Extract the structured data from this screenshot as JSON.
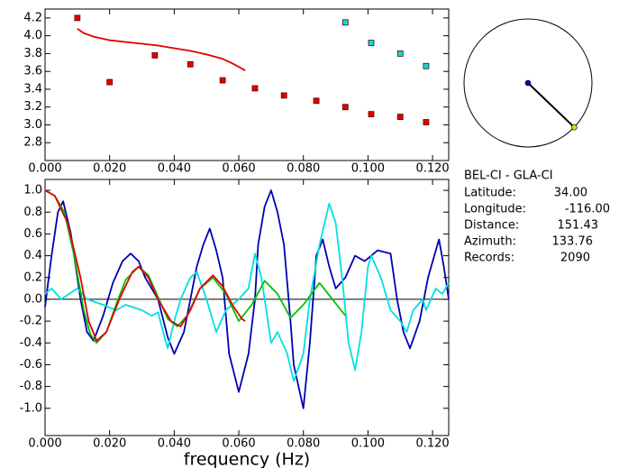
{
  "chart_data": [
    {
      "type": "scatter",
      "xlim": [
        0,
        0.125
      ],
      "xticks": [
        {
          "value": 0,
          "label": "0.000"
        },
        {
          "value": 0.02,
          "label": "0.020"
        },
        {
          "value": 0.04,
          "label": "0.040"
        },
        {
          "value": 0.06,
          "label": "0.060"
        },
        {
          "value": 0.08,
          "label": "0.080"
        },
        {
          "value": 0.1,
          "label": "0.100"
        },
        {
          "value": 0.12,
          "label": "0.120"
        }
      ],
      "ylim": [
        2.6,
        4.3
      ],
      "yticks": [
        {
          "value": 2.8,
          "label": "2.8"
        },
        {
          "value": 3.0,
          "label": "3.0"
        },
        {
          "value": 3.2,
          "label": "3.2"
        },
        {
          "value": 3.4,
          "label": "3.4"
        },
        {
          "value": 3.6,
          "label": "3.6"
        },
        {
          "value": 3.8,
          "label": "3.8"
        },
        {
          "value": 4.0,
          "label": "4.0"
        },
        {
          "value": 4.2,
          "label": "4.2"
        }
      ],
      "series": [
        {
          "type": "scatter",
          "color": "#e00000",
          "x": [
            0.01,
            0.02,
            0.034,
            0.045,
            0.055,
            0.065,
            0.074,
            0.084,
            0.093,
            0.101,
            0.11,
            0.118
          ],
          "values": [
            4.2,
            3.48,
            3.78,
            3.68,
            3.5,
            3.41,
            3.33,
            3.27,
            3.2,
            3.12,
            3.09,
            3.03
          ]
        },
        {
          "type": "scatter",
          "color": "#00e0e0",
          "x": [
            0.093,
            0.101,
            0.11,
            0.118
          ],
          "values": [
            4.15,
            3.92,
            3.8,
            3.66
          ]
        },
        {
          "type": "line",
          "color": "#e00000",
          "x": [
            0.01,
            0.012,
            0.015,
            0.02,
            0.025,
            0.03,
            0.035,
            0.04,
            0.045,
            0.05,
            0.055,
            0.058,
            0.06,
            0.062
          ],
          "values": [
            4.08,
            4.03,
            3.99,
            3.95,
            3.93,
            3.91,
            3.89,
            3.86,
            3.83,
            3.79,
            3.74,
            3.69,
            3.65,
            3.61
          ]
        }
      ]
    },
    {
      "type": "line",
      "xlabel": "frequency (Hz)",
      "zero_line": true,
      "xlim": [
        0,
        0.125
      ],
      "xticks": [
        {
          "value": 0,
          "label": "0.000"
        },
        {
          "value": 0.02,
          "label": "0.020"
        },
        {
          "value": 0.04,
          "label": "0.040"
        },
        {
          "value": 0.06,
          "label": "0.060"
        },
        {
          "value": 0.08,
          "label": "0.080"
        },
        {
          "value": 0.1,
          "label": "0.100"
        },
        {
          "value": 0.12,
          "label": "0.120"
        }
      ],
      "ylim": [
        -1.25,
        1.1
      ],
      "yticks": [
        {
          "value": -1.0,
          "label": "-1.0"
        },
        {
          "value": -0.8,
          "label": "-0.8"
        },
        {
          "value": -0.6,
          "label": "-0.6"
        },
        {
          "value": -0.4,
          "label": "-0.4"
        },
        {
          "value": -0.2,
          "label": "-0.2"
        },
        {
          "value": 0,
          "label": "0.0"
        },
        {
          "value": 0.2,
          "label": "0.2"
        },
        {
          "value": 0.4,
          "label": "0.4"
        },
        {
          "value": 0.6,
          "label": "0.6"
        },
        {
          "value": 0.8,
          "label": "0.8"
        },
        {
          "value": 1.0,
          "label": "1.0"
        }
      ],
      "series": [
        {
          "color": "#0000b0",
          "x": [
            0,
            0.002,
            0.004,
            0.0056,
            0.008,
            0.011,
            0.013,
            0.015,
            0.018,
            0.021,
            0.024,
            0.0265,
            0.029,
            0.031,
            0.033,
            0.035,
            0.038,
            0.04,
            0.043,
            0.045,
            0.047,
            0.049,
            0.051,
            0.053,
            0.055,
            0.057,
            0.06,
            0.063,
            0.065,
            0.066,
            0.068,
            0.07,
            0.072,
            0.074,
            0.076,
            0.077,
            0.08,
            0.082,
            0.084,
            0.086,
            0.088,
            0.09,
            0.093,
            0.096,
            0.099,
            0.103,
            0.107,
            0.109,
            0.111,
            0.113,
            0.116,
            0.1186,
            0.122,
            0.1235,
            0.125
          ],
          "values": [
            -0.07,
            0.4,
            0.8,
            0.9,
            0.6,
            0.0,
            -0.3,
            -0.38,
            -0.15,
            0.15,
            0.35,
            0.42,
            0.35,
            0.2,
            0.1,
            0.0,
            -0.35,
            -0.5,
            -0.3,
            0.0,
            0.3,
            0.5,
            0.65,
            0.45,
            0.2,
            -0.5,
            -0.85,
            -0.5,
            0.0,
            0.5,
            0.85,
            1.0,
            0.8,
            0.5,
            -0.2,
            -0.6,
            -1.0,
            -0.4,
            0.4,
            0.55,
            0.3,
            0.1,
            0.2,
            0.4,
            0.35,
            0.45,
            0.42,
            0.0,
            -0.3,
            -0.45,
            -0.2,
            0.2,
            0.55,
            0.3,
            0.0
          ]
        },
        {
          "color": "#00e0e0",
          "x": [
            0,
            0.002,
            0.005,
            0.01,
            0.013,
            0.018,
            0.022,
            0.025,
            0.03,
            0.033,
            0.035,
            0.037,
            0.038,
            0.04,
            0.042,
            0.045,
            0.047,
            0.05,
            0.053,
            0.056,
            0.06,
            0.063,
            0.065,
            0.067,
            0.069,
            0.07,
            0.072,
            0.075,
            0.077,
            0.08,
            0.082,
            0.085,
            0.088,
            0.09,
            0.092,
            0.094,
            0.096,
            0.098,
            0.1,
            0.101,
            0.104,
            0.107,
            0.11,
            0.112,
            0.114,
            0.117,
            0.118,
            0.121,
            0.123,
            0.125
          ],
          "values": [
            0.05,
            0.1,
            0.0,
            0.1,
            0.0,
            -0.05,
            -0.1,
            -0.05,
            -0.1,
            -0.15,
            -0.12,
            -0.35,
            -0.45,
            -0.2,
            0.0,
            0.2,
            0.25,
            0.0,
            -0.3,
            -0.1,
            0.0,
            0.1,
            0.42,
            0.2,
            -0.2,
            -0.4,
            -0.3,
            -0.5,
            -0.75,
            -0.5,
            0.0,
            0.5,
            0.88,
            0.7,
            0.2,
            -0.4,
            -0.65,
            -0.3,
            0.3,
            0.4,
            0.2,
            -0.1,
            -0.2,
            -0.3,
            -0.1,
            0.0,
            -0.1,
            0.1,
            0.05,
            0.15
          ]
        },
        {
          "color": "#00c000",
          "x": [
            0,
            0.003,
            0.006,
            0.009,
            0.012,
            0.014,
            0.016,
            0.019,
            0.022,
            0.025,
            0.029,
            0.032,
            0.035,
            0.038,
            0.041,
            0.044,
            0.048,
            0.052,
            0.056,
            0.06,
            0.064,
            0.068,
            0.072,
            0.076,
            0.08,
            0.085,
            0.089,
            0.093
          ],
          "values": [
            1.0,
            0.95,
            0.8,
            0.4,
            -0.1,
            -0.32,
            -0.4,
            -0.3,
            -0.05,
            0.18,
            0.3,
            0.22,
            0.02,
            -0.18,
            -0.25,
            -0.15,
            0.1,
            0.2,
            0.05,
            -0.2,
            -0.05,
            0.17,
            0.05,
            -0.17,
            -0.05,
            0.15,
            0.0,
            -0.15
          ]
        },
        {
          "color": "#e00000",
          "x": [
            0,
            0.003,
            0.007,
            0.011,
            0.0135,
            0.016,
            0.019,
            0.023,
            0.027,
            0.029,
            0.032,
            0.035,
            0.039,
            0.042,
            0.045,
            0.048,
            0.052,
            0.055,
            0.058,
            0.061,
            0.062
          ],
          "values": [
            1.0,
            0.95,
            0.7,
            0.2,
            -0.2,
            -0.38,
            -0.3,
            0.0,
            0.25,
            0.3,
            0.2,
            0.0,
            -0.2,
            -0.25,
            -0.1,
            0.1,
            0.22,
            0.12,
            -0.05,
            -0.18,
            -0.2
          ]
        }
      ]
    }
  ],
  "info": {
    "title": "BEL-CI - GLA-CI",
    "fields": [
      {
        "label": "Latitude:",
        "value": "34.00"
      },
      {
        "label": "Longitude:",
        "value": "-116.00"
      },
      {
        "label": "Distance:",
        "value": 151.43
      },
      {
        "label": "Azimuth:",
        "value": 133.76
      },
      {
        "label": "Records:",
        "value": 2090
      }
    ]
  }
}
